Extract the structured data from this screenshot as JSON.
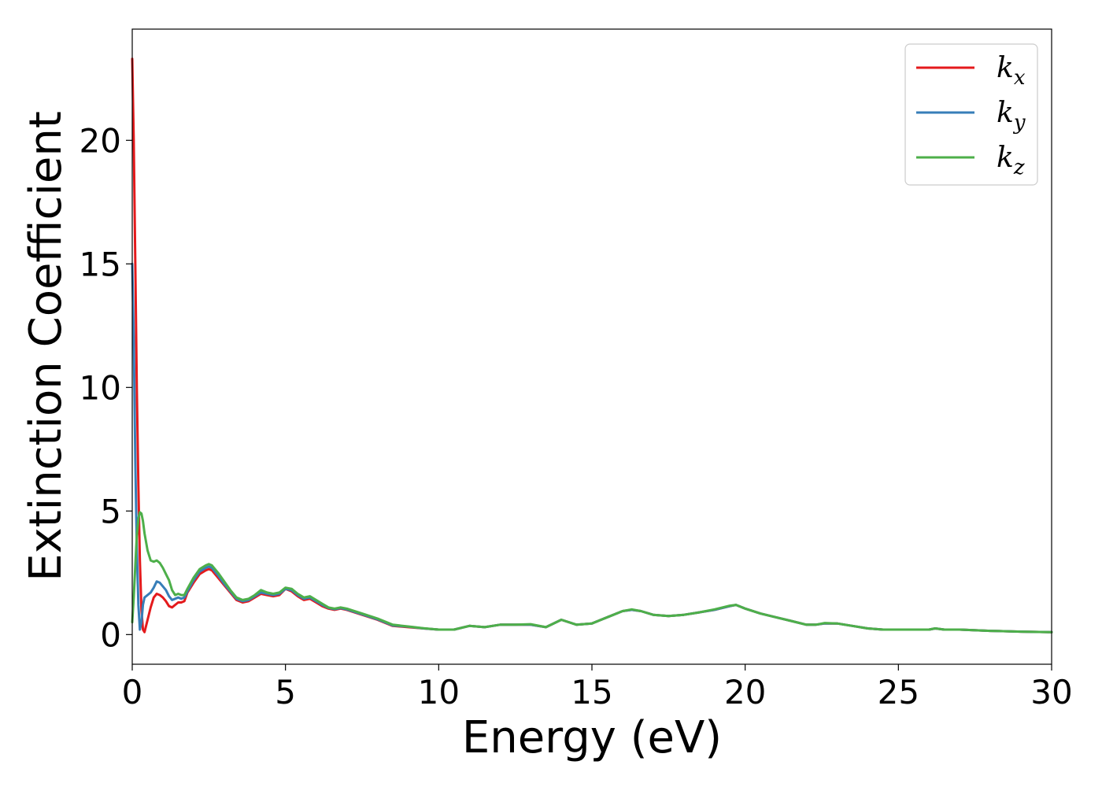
{
  "chart_data": {
    "type": "line",
    "title": "",
    "xlabel": "Energy (eV)",
    "ylabel": "Extinction Coefficient",
    "xlim": [
      0,
      30
    ],
    "ylim": [
      -1.2,
      24.5
    ],
    "xticks": [
      0,
      5,
      10,
      15,
      20,
      25,
      30
    ],
    "yticks": [
      0,
      5,
      10,
      15,
      20
    ],
    "grid": false,
    "legend_position": "top-right",
    "series": [
      {
        "name": "k_x",
        "label_base": "k",
        "label_sub": "x",
        "color": "#e41a1c",
        "x": [
          0,
          0.05,
          0.1,
          0.15,
          0.2,
          0.25,
          0.3,
          0.35,
          0.4,
          0.5,
          0.6,
          0.7,
          0.8,
          0.9,
          1.0,
          1.1,
          1.2,
          1.3,
          1.4,
          1.5,
          1.6,
          1.7,
          1.8,
          2.0,
          2.2,
          2.4,
          2.5,
          2.6,
          2.8,
          3.0,
          3.2,
          3.4,
          3.6,
          3.8,
          4.0,
          4.2,
          4.4,
          4.6,
          4.8,
          5.0,
          5.2,
          5.4,
          5.6,
          5.8,
          6.0,
          6.2,
          6.4,
          6.6,
          6.8,
          7.0,
          7.5,
          8.0,
          8.5,
          9.0,
          9.5,
          10.0,
          10.5,
          11.0,
          11.5,
          12.0,
          12.5,
          13.0,
          13.5,
          14.0,
          14.5,
          15.0,
          15.5,
          16.0,
          16.3,
          16.6,
          17.0,
          17.5,
          18.0,
          18.5,
          19.0,
          19.5,
          19.7,
          20.0,
          20.5,
          21.0,
          21.5,
          22.0,
          22.3,
          22.6,
          23.0,
          23.5,
          24.0,
          24.5,
          25.0,
          25.5,
          26.0,
          26.2,
          26.5,
          27.0,
          28.0,
          29.0,
          30.0
        ],
        "y": [
          23.3,
          20.0,
          15.0,
          10.0,
          6.0,
          3.0,
          1.0,
          0.2,
          0.1,
          0.6,
          1.1,
          1.5,
          1.65,
          1.6,
          1.5,
          1.35,
          1.15,
          1.1,
          1.2,
          1.3,
          1.3,
          1.35,
          1.7,
          2.1,
          2.45,
          2.6,
          2.65,
          2.6,
          2.3,
          2.0,
          1.7,
          1.4,
          1.3,
          1.35,
          1.5,
          1.65,
          1.6,
          1.55,
          1.6,
          1.85,
          1.75,
          1.55,
          1.4,
          1.45,
          1.3,
          1.15,
          1.05,
          1.0,
          1.05,
          1.0,
          0.8,
          0.6,
          0.35,
          0.3,
          0.25,
          0.2,
          0.2,
          0.35,
          0.3,
          0.4,
          0.4,
          0.4,
          0.3,
          0.6,
          0.4,
          0.45,
          0.7,
          0.95,
          1.0,
          0.95,
          0.8,
          0.75,
          0.8,
          0.9,
          1.0,
          1.15,
          1.2,
          1.05,
          0.85,
          0.7,
          0.55,
          0.4,
          0.4,
          0.45,
          0.45,
          0.35,
          0.25,
          0.2,
          0.2,
          0.2,
          0.2,
          0.25,
          0.2,
          0.2,
          0.15,
          0.12,
          0.1
        ]
      },
      {
        "name": "k_y",
        "label_base": "k",
        "label_sub": "y",
        "color": "#377eb8",
        "x": [
          0,
          0.05,
          0.1,
          0.15,
          0.2,
          0.25,
          0.3,
          0.35,
          0.4,
          0.5,
          0.6,
          0.7,
          0.8,
          0.9,
          1.0,
          1.1,
          1.2,
          1.3,
          1.4,
          1.5,
          1.6,
          1.7,
          1.8,
          2.0,
          2.2,
          2.4,
          2.5,
          2.6,
          2.8,
          3.0,
          3.2,
          3.4,
          3.6,
          3.8,
          4.0,
          4.2,
          4.4,
          4.6,
          4.8,
          5.0,
          5.2,
          5.4,
          5.6,
          5.8,
          6.0,
          6.2,
          6.4,
          6.6,
          6.8,
          7.0,
          7.5,
          8.0,
          8.5,
          9.0,
          9.5,
          10.0,
          10.5,
          11.0,
          11.5,
          12.0,
          12.5,
          13.0,
          13.5,
          14.0,
          14.5,
          15.0,
          15.5,
          16.0,
          16.3,
          16.6,
          17.0,
          17.5,
          18.0,
          18.5,
          19.0,
          19.5,
          19.7,
          20.0,
          20.5,
          21.0,
          21.5,
          22.0,
          22.3,
          22.6,
          23.0,
          23.5,
          24.0,
          24.5,
          25.0,
          25.5,
          26.0,
          26.2,
          26.5,
          27.0,
          28.0,
          29.0,
          30.0
        ],
        "y": [
          15.0,
          12.0,
          7.0,
          3.5,
          1.2,
          0.2,
          0.5,
          1.2,
          1.5,
          1.6,
          1.7,
          1.9,
          2.15,
          2.1,
          1.95,
          1.8,
          1.55,
          1.4,
          1.45,
          1.5,
          1.45,
          1.5,
          1.75,
          2.2,
          2.55,
          2.7,
          2.75,
          2.7,
          2.4,
          2.05,
          1.75,
          1.45,
          1.35,
          1.4,
          1.55,
          1.7,
          1.65,
          1.6,
          1.65,
          1.85,
          1.8,
          1.6,
          1.45,
          1.5,
          1.35,
          1.2,
          1.08,
          1.03,
          1.07,
          1.02,
          0.82,
          0.62,
          0.37,
          0.32,
          0.25,
          0.2,
          0.2,
          0.35,
          0.3,
          0.4,
          0.4,
          0.4,
          0.3,
          0.6,
          0.4,
          0.45,
          0.7,
          0.95,
          1.0,
          0.95,
          0.8,
          0.75,
          0.8,
          0.9,
          1.0,
          1.15,
          1.2,
          1.05,
          0.85,
          0.7,
          0.55,
          0.4,
          0.4,
          0.45,
          0.45,
          0.35,
          0.25,
          0.2,
          0.2,
          0.2,
          0.2,
          0.25,
          0.2,
          0.2,
          0.15,
          0.12,
          0.1
        ]
      },
      {
        "name": "k_z",
        "label_base": "k",
        "label_sub": "z",
        "color": "#4daf4a",
        "x": [
          0,
          0.05,
          0.1,
          0.15,
          0.2,
          0.25,
          0.3,
          0.35,
          0.4,
          0.5,
          0.6,
          0.7,
          0.8,
          0.9,
          1.0,
          1.1,
          1.2,
          1.3,
          1.4,
          1.5,
          1.6,
          1.7,
          1.8,
          2.0,
          2.2,
          2.4,
          2.5,
          2.6,
          2.8,
          3.0,
          3.2,
          3.4,
          3.6,
          3.8,
          4.0,
          4.2,
          4.4,
          4.6,
          4.8,
          5.0,
          5.2,
          5.4,
          5.6,
          5.8,
          6.0,
          6.2,
          6.4,
          6.6,
          6.8,
          7.0,
          7.5,
          8.0,
          8.5,
          9.0,
          9.5,
          10.0,
          10.5,
          11.0,
          11.5,
          12.0,
          12.5,
          13.0,
          13.5,
          14.0,
          14.5,
          15.0,
          15.5,
          16.0,
          16.3,
          16.6,
          17.0,
          17.5,
          18.0,
          18.5,
          19.0,
          19.5,
          19.7,
          20.0,
          20.5,
          21.0,
          21.5,
          22.0,
          22.3,
          22.6,
          23.0,
          23.5,
          24.0,
          24.5,
          25.0,
          25.5,
          26.0,
          26.2,
          26.5,
          27.0,
          28.0,
          29.0,
          30.0
        ],
        "y": [
          0.5,
          1.5,
          2.8,
          4.0,
          4.7,
          4.95,
          4.9,
          4.6,
          4.1,
          3.4,
          3.0,
          2.95,
          3.0,
          2.9,
          2.7,
          2.45,
          2.2,
          1.8,
          1.6,
          1.65,
          1.6,
          1.6,
          1.85,
          2.3,
          2.65,
          2.8,
          2.85,
          2.8,
          2.5,
          2.15,
          1.8,
          1.5,
          1.4,
          1.45,
          1.6,
          1.8,
          1.7,
          1.65,
          1.7,
          1.9,
          1.85,
          1.65,
          1.5,
          1.55,
          1.4,
          1.25,
          1.1,
          1.05,
          1.1,
          1.05,
          0.85,
          0.65,
          0.4,
          0.33,
          0.26,
          0.2,
          0.2,
          0.35,
          0.3,
          0.4,
          0.4,
          0.42,
          0.3,
          0.6,
          0.4,
          0.45,
          0.7,
          0.95,
          1.02,
          0.95,
          0.8,
          0.75,
          0.8,
          0.9,
          1.02,
          1.17,
          1.2,
          1.05,
          0.85,
          0.7,
          0.55,
          0.4,
          0.4,
          0.47,
          0.45,
          0.35,
          0.25,
          0.2,
          0.2,
          0.2,
          0.2,
          0.25,
          0.2,
          0.2,
          0.15,
          0.12,
          0.1
        ]
      }
    ]
  }
}
